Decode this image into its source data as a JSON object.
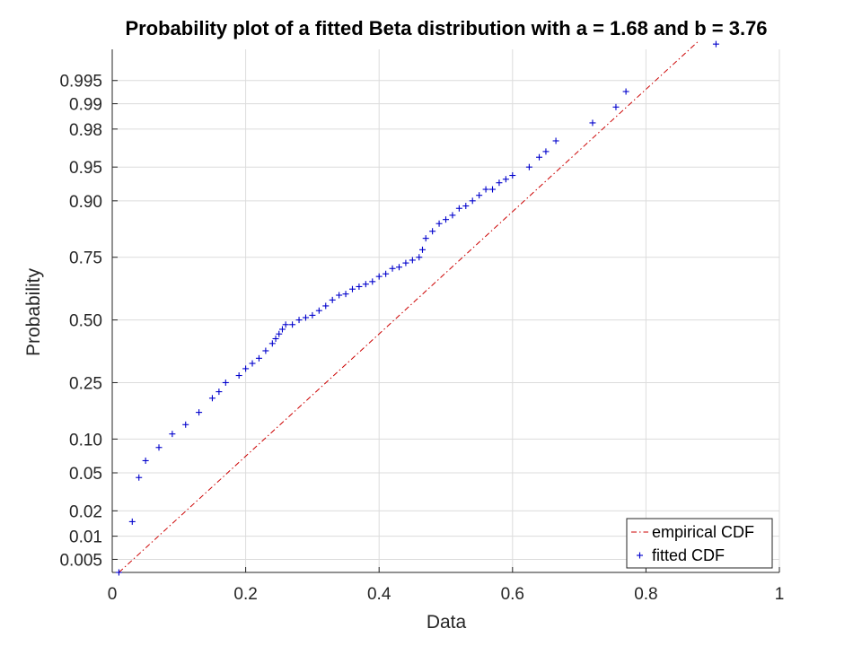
{
  "chart_data": {
    "type": "scatter",
    "title": "Probability plot of a fitted Beta distribution with a = 1.68 and b = 3.76",
    "xlabel": "Data",
    "ylabel": "Probability",
    "xlim": [
      0,
      1
    ],
    "x_ticks": [
      0,
      0.2,
      0.4,
      0.6,
      0.8,
      1
    ],
    "x_tick_labels": [
      "0",
      "0.2",
      "0.4",
      "0.6",
      "0.8",
      "1"
    ],
    "y_scale": "normal probability",
    "y_ticks": [
      0.005,
      0.01,
      0.02,
      0.05,
      0.1,
      0.25,
      0.5,
      0.75,
      0.9,
      0.95,
      0.98,
      0.99,
      0.995
    ],
    "y_tick_labels": [
      "0.005",
      "0.01",
      "0.02",
      "0.05",
      "0.10",
      "0.25",
      "0.50",
      "0.75",
      "0.90",
      "0.95",
      "0.98",
      "0.99",
      "0.995"
    ],
    "grid": true,
    "legend_position": "bottom-right",
    "colors": {
      "empirical": "#cc0000",
      "fitted": "#0000cc",
      "grid": "#dcdcdc"
    },
    "series": [
      {
        "name": "empirical CDF",
        "style": "dash-dot line",
        "x": [
          0.01,
          0.88
        ],
        "y": [
          0.0033,
          0.999
        ]
      },
      {
        "name": "fitted CDF",
        "style": "plus markers",
        "x": [
          0.01,
          0.03,
          0.04,
          0.05,
          0.07,
          0.09,
          0.11,
          0.13,
          0.15,
          0.16,
          0.17,
          0.19,
          0.2,
          0.21,
          0.22,
          0.23,
          0.24,
          0.245,
          0.25,
          0.255,
          0.26,
          0.27,
          0.28,
          0.29,
          0.3,
          0.31,
          0.32,
          0.33,
          0.34,
          0.35,
          0.36,
          0.37,
          0.38,
          0.39,
          0.4,
          0.41,
          0.42,
          0.43,
          0.44,
          0.45,
          0.46,
          0.465,
          0.47,
          0.48,
          0.49,
          0.5,
          0.51,
          0.52,
          0.53,
          0.54,
          0.55,
          0.56,
          0.57,
          0.58,
          0.59,
          0.6,
          0.625,
          0.64,
          0.65,
          0.665,
          0.72,
          0.755,
          0.77,
          0.905
        ],
        "y": [
          0.0033,
          0.015,
          0.045,
          0.065,
          0.085,
          0.11,
          0.13,
          0.16,
          0.2,
          0.22,
          0.25,
          0.275,
          0.3,
          0.32,
          0.34,
          0.37,
          0.4,
          0.42,
          0.44,
          0.46,
          0.48,
          0.48,
          0.5,
          0.51,
          0.52,
          0.54,
          0.56,
          0.585,
          0.605,
          0.61,
          0.63,
          0.64,
          0.65,
          0.66,
          0.68,
          0.69,
          0.71,
          0.715,
          0.73,
          0.74,
          0.75,
          0.775,
          0.81,
          0.83,
          0.85,
          0.86,
          0.87,
          0.885,
          0.89,
          0.9,
          0.91,
          0.92,
          0.92,
          0.93,
          0.935,
          0.94,
          0.95,
          0.96,
          0.965,
          0.973,
          0.983,
          0.989,
          0.993,
          0.9985
        ]
      }
    ]
  }
}
